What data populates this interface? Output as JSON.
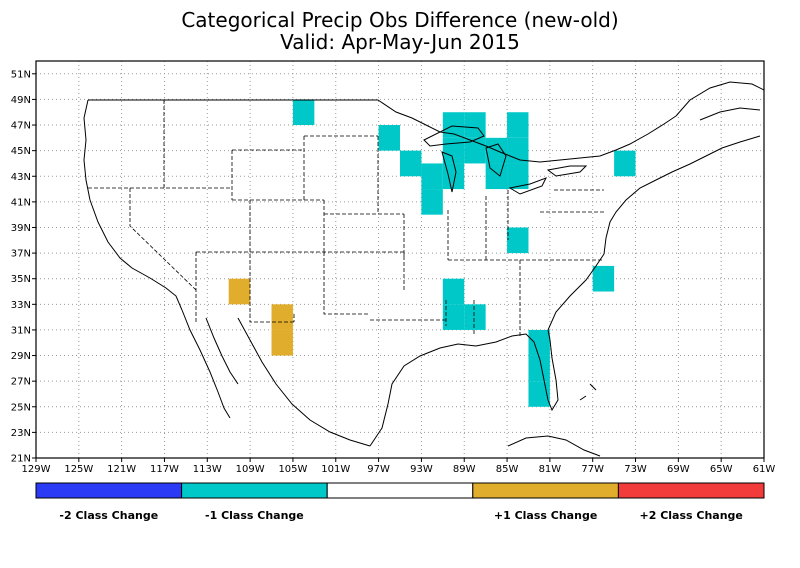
{
  "title": {
    "line1": "Categorical Precip Obs Difference (new-old)",
    "line2": "Valid: Apr-May-Jun 2015"
  },
  "map": {
    "lon_range": [
      -129,
      -61
    ],
    "lat_range": [
      21,
      52
    ],
    "grid": "on",
    "x_ticks": [
      "129W",
      "125W",
      "121W",
      "117W",
      "113W",
      "109W",
      "105W",
      "101W",
      "97W",
      "93W",
      "89W",
      "85W",
      "81W",
      "77W",
      "73W",
      "69W",
      "65W",
      "61W"
    ],
    "x_tick_values": [
      -129,
      -125,
      -121,
      -117,
      -113,
      -109,
      -105,
      -101,
      -97,
      -93,
      -89,
      -85,
      -81,
      -77,
      -73,
      -69,
      -65,
      -61
    ],
    "y_ticks": [
      "21N",
      "23N",
      "25N",
      "27N",
      "29N",
      "31N",
      "33N",
      "35N",
      "37N",
      "39N",
      "41N",
      "43N",
      "45N",
      "47N",
      "49N",
      "51N"
    ],
    "y_tick_values": [
      21,
      23,
      25,
      27,
      29,
      31,
      33,
      35,
      37,
      39,
      41,
      43,
      45,
      47,
      49,
      51
    ],
    "cells": [
      {
        "lon": -104,
        "lat": 48,
        "class": -1
      },
      {
        "lon": -96,
        "lat": 46,
        "class": -1
      },
      {
        "lon": -94,
        "lat": 44,
        "class": -1
      },
      {
        "lon": -90,
        "lat": 47,
        "class": -1
      },
      {
        "lon": -88,
        "lat": 47,
        "class": -1
      },
      {
        "lon": -90,
        "lat": 45,
        "class": -1
      },
      {
        "lon": -88,
        "lat": 45,
        "class": -1
      },
      {
        "lon": -90,
        "lat": 43,
        "class": -1
      },
      {
        "lon": -92,
        "lat": 43,
        "class": -1
      },
      {
        "lon": -92,
        "lat": 41,
        "class": -1
      },
      {
        "lon": -84,
        "lat": 47,
        "class": -1
      },
      {
        "lon": -84,
        "lat": 45,
        "class": -1
      },
      {
        "lon": -86,
        "lat": 45,
        "class": -1
      },
      {
        "lon": -84,
        "lat": 43,
        "class": -1
      },
      {
        "lon": -86,
        "lat": 43,
        "class": -1
      },
      {
        "lon": -74,
        "lat": 44,
        "class": -1
      },
      {
        "lon": -84,
        "lat": 38,
        "class": -1
      },
      {
        "lon": -76,
        "lat": 35,
        "class": -1
      },
      {
        "lon": -90,
        "lat": 34,
        "class": -1
      },
      {
        "lon": -90,
        "lat": 32,
        "class": -1
      },
      {
        "lon": -88,
        "lat": 32,
        "class": -1
      },
      {
        "lon": -82,
        "lat": 30,
        "class": -1
      },
      {
        "lon": -82,
        "lat": 28,
        "class": -1
      },
      {
        "lon": -82,
        "lat": 26,
        "class": -1
      },
      {
        "lon": -110,
        "lat": 34,
        "class": 1
      },
      {
        "lon": -106,
        "lat": 32,
        "class": 1
      },
      {
        "lon": -106,
        "lat": 30,
        "class": 1
      }
    ]
  },
  "colors": {
    "minus2": "#2b3af5",
    "minus1": "#00c8c8",
    "zero": "#ffffff",
    "plus1": "#e1ad2c",
    "plus2": "#f23c3c"
  },
  "legend": {
    "items": [
      {
        "label": "-2 Class Change",
        "color": "#2b3af5"
      },
      {
        "label": "-1 Class Change",
        "color": "#00c8c8"
      },
      {
        "label": "",
        "color": "#ffffff"
      },
      {
        "label": "+1 Class Change",
        "color": "#e1ad2c"
      },
      {
        "label": "+2 Class Change",
        "color": "#f23c3c"
      }
    ]
  }
}
